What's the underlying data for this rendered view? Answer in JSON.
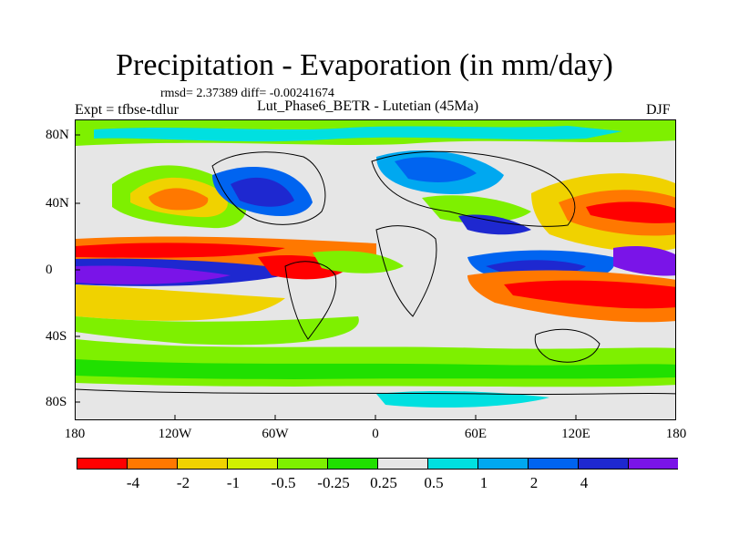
{
  "title": "Precipitation - Evaporation (in mm/day)",
  "stats": "rmsd= 2.37389 diff= -0.00241674",
  "experiment": "Expt = tfbse-tdlur",
  "subtitle": "Lut_Phase6_BETR - Lutetian (45Ma)",
  "season": "DJF",
  "lat_ticks": [
    "80N",
    "40N",
    "0",
    "40S",
    "80S"
  ],
  "lon_ticks": [
    "180",
    "120W",
    "60W",
    "0",
    "60E",
    "120E",
    "180"
  ],
  "colorbar": {
    "labels": [
      "-4",
      "-2",
      "-1",
      "-0.5",
      "-0.25",
      "0.25",
      "0.5",
      "1",
      "2",
      "4"
    ],
    "colors": [
      "#ff0000",
      "#ff7800",
      "#f0d200",
      "#d0f000",
      "#7ef000",
      "#20e000",
      "#e6e6e6",
      "#00e0e0",
      "#00a8f0",
      "#0064f0",
      "#1e28d0",
      "#7a14e8"
    ]
  }
}
